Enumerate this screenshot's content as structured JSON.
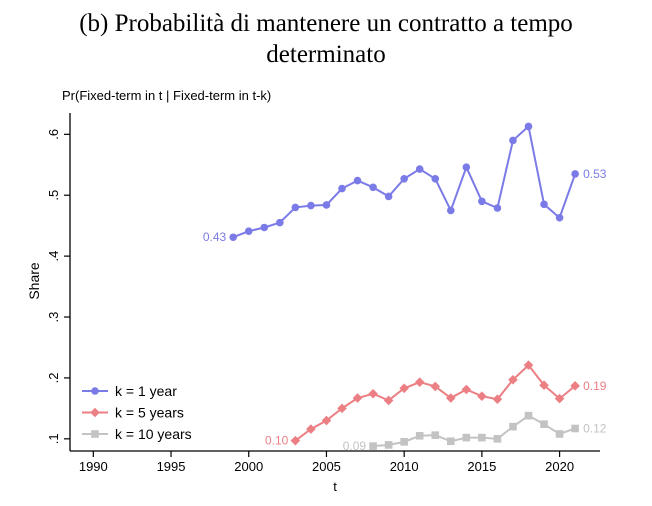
{
  "figure": {
    "title_line1": "(b) Probabilità di mantenere un contratto a tempo",
    "title_line2": "determinato"
  },
  "chart_data": {
    "type": "line",
    "title": "Pr(Fixed-term in t | Fixed-term in t-k)",
    "xlabel": "t",
    "ylabel": "Share",
    "xlim": [
      1988.5,
      2022.6
    ],
    "ylim": [
      0.08,
      0.635
    ],
    "xticks": [
      1990,
      1995,
      2000,
      2005,
      2010,
      2015,
      2020
    ],
    "xtick_labels": [
      "1990",
      "1995",
      "2000",
      "2005",
      "2010",
      "2015",
      "2020"
    ],
    "yticks": [
      0.1,
      0.2,
      0.3,
      0.4,
      0.5,
      0.6
    ],
    "ytick_labels": [
      ".1",
      ".2",
      ".3",
      ".4",
      ".5",
      ".6"
    ],
    "grid": false,
    "legend_position": "bottom-left",
    "series": [
      {
        "name": "k = 1 year",
        "color": "#7b7be8",
        "marker": "circle",
        "x": [
          1999,
          2000,
          2001,
          2002,
          2003,
          2004,
          2005,
          2006,
          2007,
          2008,
          2009,
          2010,
          2011,
          2012,
          2013,
          2014,
          2015,
          2016,
          2017,
          2018,
          2019,
          2020,
          2021
        ],
        "y": [
          0.431,
          0.441,
          0.447,
          0.455,
          0.48,
          0.483,
          0.484,
          0.511,
          0.524,
          0.513,
          0.498,
          0.527,
          0.543,
          0.527,
          0.475,
          0.546,
          0.49,
          0.479,
          0.59,
          0.613,
          0.485,
          0.463,
          0.535
        ],
        "start_label": "0.43",
        "end_label": "0.53"
      },
      {
        "name": "k = 5 years",
        "color": "#eb7f84",
        "marker": "diamond",
        "x": [
          2003,
          2004,
          2005,
          2006,
          2007,
          2008,
          2009,
          2010,
          2011,
          2012,
          2013,
          2014,
          2015,
          2016,
          2017,
          2018,
          2019,
          2020,
          2021
        ],
        "y": [
          0.097,
          0.116,
          0.13,
          0.15,
          0.167,
          0.174,
          0.163,
          0.183,
          0.193,
          0.186,
          0.167,
          0.181,
          0.17,
          0.165,
          0.197,
          0.221,
          0.188,
          0.166,
          0.187
        ],
        "start_label": "0.10",
        "end_label": "0.19"
      },
      {
        "name": "k = 10 years",
        "color": "#c3c3c3",
        "marker": "square",
        "x": [
          2008,
          2009,
          2010,
          2011,
          2012,
          2013,
          2014,
          2015,
          2016,
          2017,
          2018,
          2019,
          2020,
          2021
        ],
        "y": [
          0.088,
          0.09,
          0.095,
          0.105,
          0.106,
          0.096,
          0.102,
          0.102,
          0.1,
          0.12,
          0.138,
          0.124,
          0.108,
          0.117
        ],
        "start_label": "0.09",
        "end_label": "0.12"
      }
    ]
  }
}
